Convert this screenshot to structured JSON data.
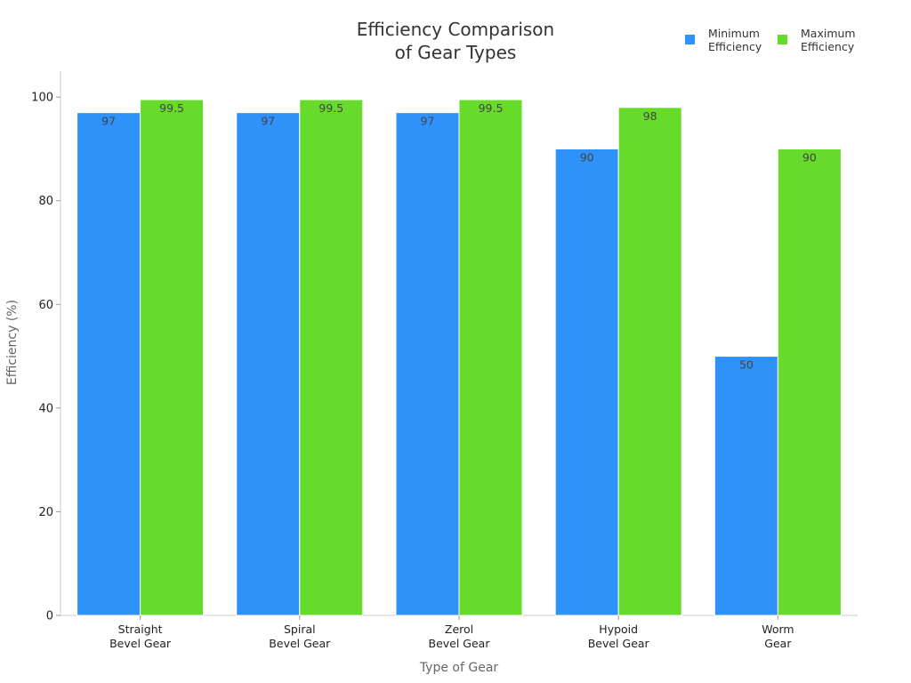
{
  "chart_data": {
    "type": "bar",
    "title_lines": [
      "Efficiency Comparison",
      "of Gear Types"
    ],
    "xlabel": "Type of Gear",
    "ylabel": "Efficiency (%)",
    "ylim": [
      0,
      105
    ],
    "yticks": [
      0,
      20,
      40,
      60,
      80,
      100
    ],
    "grid": false,
    "legend_position": "top-right",
    "categories": [
      [
        "Straight",
        "Bevel Gear"
      ],
      [
        "Spiral",
        "Bevel Gear"
      ],
      [
        "Zerol",
        "Bevel Gear"
      ],
      [
        "Hypoid",
        "Bevel Gear"
      ],
      [
        "Worm",
        "Gear"
      ]
    ],
    "series": [
      {
        "name_lines": [
          "Minimum",
          "Efficiency"
        ],
        "color": "#2f91fa",
        "values": [
          97,
          97,
          97,
          90,
          50
        ],
        "labels": [
          "97",
          "97",
          "97",
          "90",
          "50"
        ]
      },
      {
        "name_lines": [
          "Maximum",
          "Efficiency"
        ],
        "color": "#66db29",
        "values": [
          99.5,
          99.5,
          99.5,
          98,
          90
        ],
        "labels": [
          "99.5",
          "99.5",
          "99.5",
          "98",
          "90"
        ]
      }
    ]
  }
}
